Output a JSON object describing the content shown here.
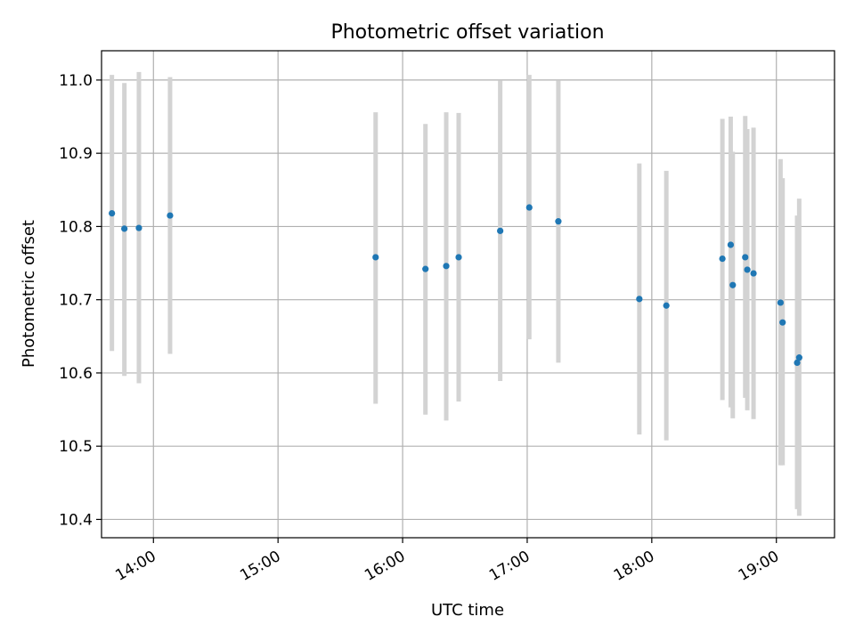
{
  "chart_data": {
    "type": "scatter",
    "title": "Photometric offset variation",
    "xlabel": "UTC time",
    "ylabel": "Photometric offset",
    "x_ticks": [
      "14:00",
      "15:00",
      "16:00",
      "17:00",
      "18:00",
      "19:00"
    ],
    "x_tick_hours": [
      14,
      15,
      16,
      17,
      18,
      19
    ],
    "y_ticks": [
      "10.4",
      "10.5",
      "10.6",
      "10.7",
      "10.8",
      "10.9",
      "11.0"
    ],
    "y_tick_values": [
      10.4,
      10.5,
      10.6,
      10.7,
      10.8,
      10.9,
      11.0
    ],
    "xlim": [
      "13:35",
      "19:28"
    ],
    "ylim": [
      10.375,
      11.04
    ],
    "grid": true,
    "series": [
      {
        "color": "#1f77b4",
        "error_bar_color": "#d3d3d3",
        "points": [
          {
            "time": "13:40",
            "y": 10.818,
            "ylow": 10.63,
            "yhigh": 11.007
          },
          {
            "time": "13:46",
            "y": 10.797,
            "ylow": 10.596,
            "yhigh": 10.996
          },
          {
            "time": "13:53",
            "y": 10.798,
            "ylow": 10.586,
            "yhigh": 11.011
          },
          {
            "time": "14:08",
            "y": 10.815,
            "ylow": 10.626,
            "yhigh": 11.004
          },
          {
            "time": "15:47",
            "y": 10.758,
            "ylow": 10.558,
            "yhigh": 10.956
          },
          {
            "time": "16:11",
            "y": 10.742,
            "ylow": 10.543,
            "yhigh": 10.94
          },
          {
            "time": "16:21",
            "y": 10.746,
            "ylow": 10.535,
            "yhigh": 10.956
          },
          {
            "time": "16:27",
            "y": 10.758,
            "ylow": 10.561,
            "yhigh": 10.955
          },
          {
            "time": "16:47",
            "y": 10.794,
            "ylow": 10.589,
            "yhigh": 10.999
          },
          {
            "time": "17:01",
            "y": 10.826,
            "ylow": 10.646,
            "yhigh": 11.007
          },
          {
            "time": "17:15",
            "y": 10.807,
            "ylow": 10.614,
            "yhigh": 10.999
          },
          {
            "time": "17:54",
            "y": 10.701,
            "ylow": 10.516,
            "yhigh": 10.886
          },
          {
            "time": "18:07",
            "y": 10.692,
            "ylow": 10.508,
            "yhigh": 10.876
          },
          {
            "time": "18:34",
            "y": 10.756,
            "ylow": 10.563,
            "yhigh": 10.947
          },
          {
            "time": "18:38",
            "y": 10.775,
            "ylow": 10.553,
            "yhigh": 10.95
          },
          {
            "time": "18:39",
            "y": 10.72,
            "ylow": 10.538,
            "yhigh": 10.902
          },
          {
            "time": "18:45",
            "y": 10.758,
            "ylow": 10.566,
            "yhigh": 10.951
          },
          {
            "time": "18:46",
            "y": 10.741,
            "ylow": 10.549,
            "yhigh": 10.933
          },
          {
            "time": "18:49",
            "y": 10.736,
            "ylow": 10.537,
            "yhigh": 10.935
          },
          {
            "time": "19:02",
            "y": 10.696,
            "ylow": 10.474,
            "yhigh": 10.892
          },
          {
            "time": "19:03",
            "y": 10.669,
            "ylow": 10.474,
            "yhigh": 10.866
          },
          {
            "time": "19:10",
            "y": 10.614,
            "ylow": 10.414,
            "yhigh": 10.815
          },
          {
            "time": "19:11",
            "y": 10.621,
            "ylow": 10.405,
            "yhigh": 10.838
          }
        ]
      }
    ]
  }
}
